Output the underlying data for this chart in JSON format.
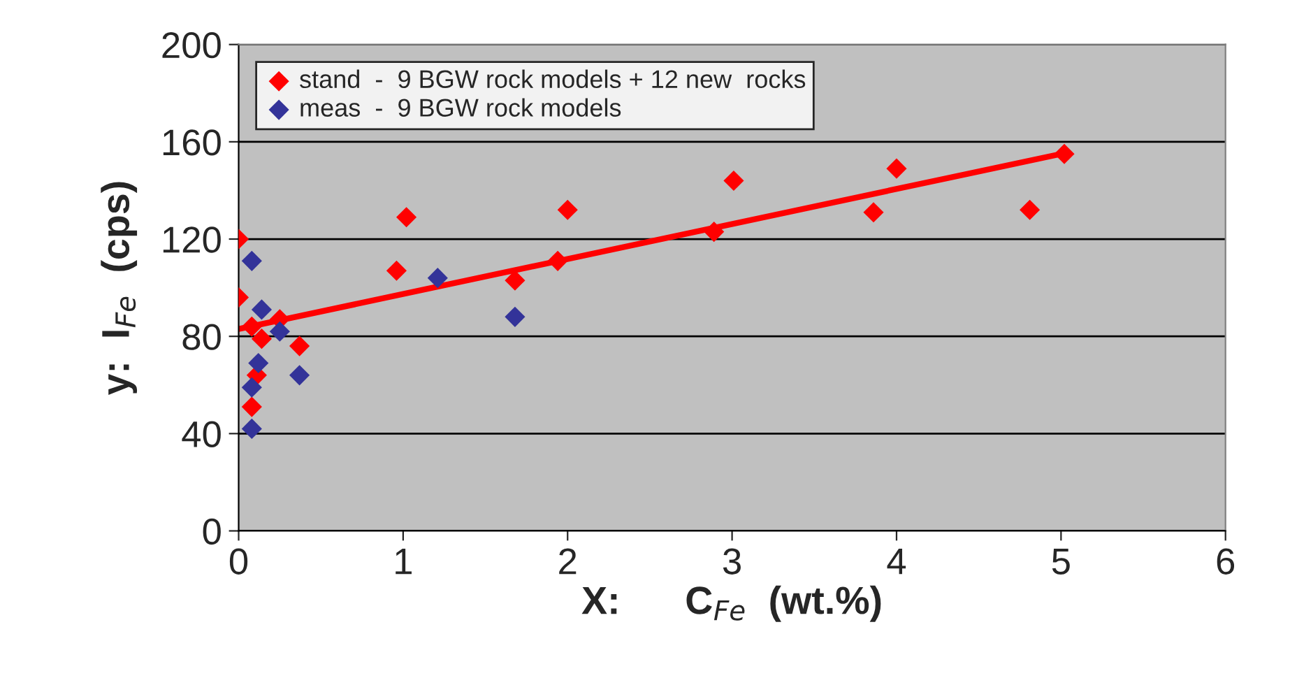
{
  "chart_data": {
    "type": "scatter",
    "xlabel": "X:      C$_{Fe}$  (wt.%)",
    "ylabel": "y:  I$_{Fe}$  (cps)",
    "xlim": [
      0,
      6
    ],
    "xticks": [
      0,
      1,
      2,
      3,
      4,
      5,
      6
    ],
    "ylim": [
      0,
      200
    ],
    "yticks": [
      0,
      40,
      80,
      120,
      160,
      200
    ],
    "grid": "y",
    "legend": "top left",
    "marker": "diamond",
    "series": [
      {
        "name": "stand  -  9 BGW rock models + 12 new  rocks",
        "color": "#ff0000",
        "x": [
          0.0,
          0.0,
          0.08,
          0.14,
          0.25,
          0.37,
          0.11,
          0.08,
          0.96,
          1.02,
          1.68,
          1.94,
          2.0,
          2.89,
          3.01,
          3.86,
          4.0,
          4.81,
          5.02
        ],
        "values": [
          120,
          96,
          84,
          79,
          87,
          76,
          64,
          51,
          107,
          129,
          103,
          111,
          132,
          123,
          144,
          131,
          149,
          132,
          155
        ]
      },
      {
        "name": "meas  -  9 BGW rock models",
        "color": "#333399",
        "x": [
          0.08,
          0.14,
          0.25,
          0.12,
          0.08,
          0.08,
          0.37,
          1.21,
          1.68
        ],
        "values": [
          111,
          91,
          82,
          69,
          59,
          42,
          64,
          104,
          88
        ]
      },
      {
        "type": "line",
        "color": "#ff0000",
        "x": [
          0,
          5
        ],
        "values": [
          83,
          155
        ],
        "marker": "none"
      }
    ]
  }
}
